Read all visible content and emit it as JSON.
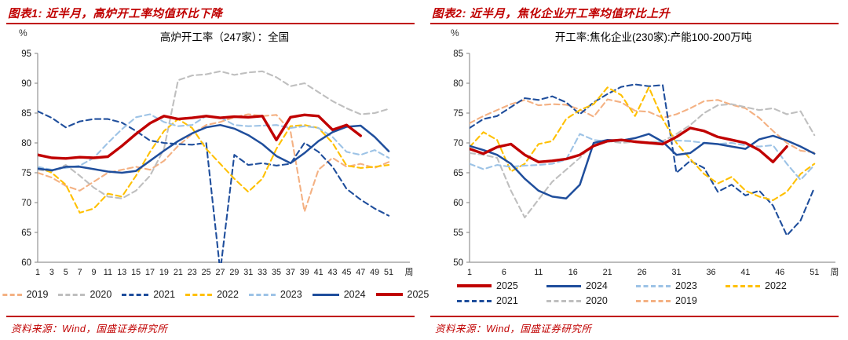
{
  "accent_color": "#C00000",
  "source_text": "资料来源：Wind，国盛证券研究所",
  "week_label": "周",
  "percent_label": "%",
  "panels": [
    {
      "header": "图表1:  近半月，高炉开工率均值环比下降"
    },
    {
      "header": "图表2:  近半月，焦化企业开工率均值环比上升"
    }
  ],
  "chart_data": [
    {
      "type": "line",
      "title": "高炉开工率（247家）：全国",
      "ylabel": "%",
      "xlabel": "周",
      "ylim": [
        60,
        95
      ],
      "y_ticks": [
        60,
        65,
        70,
        75,
        80,
        85,
        90,
        95
      ],
      "x_ticks": [
        1,
        3,
        5,
        7,
        9,
        11,
        13,
        15,
        17,
        19,
        21,
        23,
        25,
        27,
        29,
        31,
        33,
        35,
        37,
        39,
        41,
        43,
        45,
        47,
        49,
        51
      ],
      "x_weeks": [
        1,
        3,
        5,
        7,
        9,
        11,
        13,
        15,
        17,
        19,
        21,
        23,
        25,
        27,
        29,
        31,
        33,
        35,
        37,
        39,
        41,
        43,
        45,
        47,
        49,
        51
      ],
      "legend_order": [
        "2019",
        "2020",
        "2021",
        "2022",
        "2023",
        "2024",
        "2025"
      ],
      "series": [
        {
          "name": "2019",
          "color": "#F4B183",
          "style": "dashed",
          "weight": "thin",
          "values": [
            75,
            74.2,
            72.8,
            72,
            73.5,
            75,
            75.5,
            76,
            75.5,
            77,
            79.5,
            81.5,
            83,
            83.5,
            84.3,
            84.8,
            84.5,
            84.7,
            82,
            68.5,
            75.5,
            77.5,
            76,
            76.5,
            75.8,
            76.8
          ]
        },
        {
          "name": "2020",
          "color": "#BFBFBF",
          "style": "dashed",
          "weight": "thin",
          "values": [
            75.5,
            75.2,
            76.3,
            74.5,
            72.5,
            71,
            70.7,
            72,
            74.5,
            79,
            90.5,
            91.3,
            91.5,
            92,
            91.4,
            91.8,
            92,
            91,
            89.5,
            90,
            88.5,
            87,
            85.8,
            84.8,
            85,
            85.7
          ]
        },
        {
          "name": "2021",
          "color": "#1F4E9C",
          "style": "dashed",
          "weight": "thin",
          "values": [
            85.3,
            84.2,
            82.6,
            83.6,
            84,
            84,
            83.4,
            82,
            80.4,
            80,
            79.8,
            79.7,
            80,
            58.5,
            78,
            76.3,
            76.6,
            76.2,
            76.5,
            80,
            78.5,
            76,
            72.3,
            70.5,
            69,
            67.8
          ]
        },
        {
          "name": "2022",
          "color": "#FFC000",
          "style": "dashed",
          "weight": "thin",
          "values": [
            76,
            75,
            73,
            68.3,
            69,
            71.5,
            71,
            74.5,
            78.5,
            82,
            84,
            82.5,
            79,
            76.5,
            74,
            71.8,
            74,
            79,
            82.8,
            83,
            82.5,
            80,
            76.2,
            75.8,
            76,
            76.3
          ]
        },
        {
          "name": "2023",
          "color": "#9DC3E6",
          "style": "dashed",
          "weight": "thin",
          "values": [
            76,
            75.5,
            75.8,
            76.2,
            77.5,
            80,
            82.3,
            84.3,
            84.8,
            83.5,
            82.8,
            83,
            84.5,
            84.3,
            83,
            82.8,
            82.9,
            83,
            82.5,
            82.8,
            82.5,
            81,
            78.5,
            78,
            78.8,
            77.5
          ]
        },
        {
          "name": "2024",
          "color": "#1F4E9C",
          "style": "solid",
          "weight": "medium",
          "values": [
            75.7,
            75.4,
            76,
            76,
            75.6,
            75.2,
            75,
            75.3,
            77,
            78.7,
            80.3,
            81.6,
            82.6,
            83,
            82.4,
            81.3,
            79.8,
            77.8,
            76.6,
            78.3,
            80.3,
            81.8,
            82.7,
            82.9,
            81,
            78.6
          ]
        },
        {
          "name": "2025",
          "color": "#C00000",
          "style": "solid",
          "weight": "thick",
          "values": [
            78,
            77.5,
            77.4,
            77.6,
            77.5,
            77.7,
            79.5,
            81.5,
            83.3,
            84.5,
            84,
            84.2,
            84.5,
            84.2,
            84.4,
            84.3,
            84.5,
            80.5,
            84.3,
            84.7,
            84.5,
            82.2,
            83,
            81.2,
            null,
            null
          ]
        }
      ]
    },
    {
      "type": "line",
      "title": "开工率:焦化企业(230家):产能100-200万吨",
      "ylabel": "%",
      "xlabel": "周",
      "ylim": [
        50,
        85
      ],
      "y_ticks": [
        50,
        55,
        60,
        65,
        70,
        75,
        80,
        85
      ],
      "x_ticks": [
        1,
        6,
        11,
        16,
        21,
        26,
        31,
        36,
        41,
        46,
        51
      ],
      "x_weeks": [
        1,
        3,
        5,
        7,
        9,
        11,
        13,
        15,
        17,
        19,
        21,
        23,
        25,
        27,
        29,
        31,
        33,
        35,
        37,
        39,
        41,
        43,
        45,
        47,
        49,
        51
      ],
      "legend_order": [
        "2025",
        "2024",
        "2023",
        "2022",
        "2021",
        "2020",
        "2019"
      ],
      "series": [
        {
          "name": "2019",
          "color": "#F4B183",
          "style": "dashed",
          "weight": "thin",
          "values": [
            73.3,
            74.5,
            75.5,
            76.5,
            77.2,
            76.3,
            76.5,
            76.4,
            75.6,
            74.4,
            77.3,
            76.8,
            75.4,
            75.2,
            74.2,
            74.8,
            75.8,
            77,
            77.2,
            76.4,
            75.8,
            74.2,
            72,
            70,
            68.7,
            68.4
          ]
        },
        {
          "name": "2020",
          "color": "#BFBFBF",
          "style": "dashed",
          "weight": "thin",
          "values": [
            68.3,
            68,
            67.5,
            62,
            57.5,
            60.5,
            63.5,
            65.5,
            67.5,
            69.8,
            70.3,
            70,
            70.2,
            70.1,
            70.3,
            71.5,
            73,
            75,
            76.3,
            76.5,
            76,
            75.5,
            75.8,
            74.8,
            75.3,
            71.3
          ]
        },
        {
          "name": "2021",
          "color": "#1F4E9C",
          "style": "dashed",
          "weight": "thin",
          "values": [
            72.5,
            74,
            74.5,
            76,
            77.5,
            77.2,
            77.8,
            76.8,
            74.8,
            76.8,
            78.2,
            79.4,
            79.8,
            79.5,
            79.7,
            65,
            67,
            65.8,
            61.8,
            63,
            61.2,
            62,
            59.5,
            54.5,
            57,
            62.5
          ]
        },
        {
          "name": "2022",
          "color": "#FFC000",
          "style": "dashed",
          "weight": "thin",
          "values": [
            69.3,
            71.8,
            70.5,
            65.2,
            66.5,
            69.8,
            70.3,
            74,
            75.5,
            76.5,
            79.3,
            78,
            74.5,
            79.3,
            74,
            70,
            67.3,
            64.8,
            63.2,
            64.3,
            62,
            61,
            60.4,
            61.8,
            64.8,
            66.5
          ]
        },
        {
          "name": "2023",
          "color": "#9DC3E6",
          "style": "dashed",
          "weight": "thin",
          "values": [
            66.5,
            65.6,
            66.3,
            66,
            66.2,
            66.3,
            66.5,
            67.2,
            71.5,
            70.5,
            70.2,
            70.4,
            70.3,
            70,
            70.2,
            70.4,
            70.3,
            70,
            69.8,
            70,
            69.6,
            69.4,
            69.6,
            66.5,
            63.8,
            66.3
          ]
        },
        {
          "name": "2024",
          "color": "#1F4E9C",
          "style": "solid",
          "weight": "medium",
          "values": [
            69.5,
            68.8,
            68,
            66.5,
            64,
            62,
            61,
            60.7,
            63,
            70,
            70.5,
            70.4,
            70.8,
            71.5,
            70.2,
            68,
            68.3,
            70,
            69.8,
            69.4,
            69,
            70.6,
            71.2,
            70.4,
            69.4,
            68.2
          ]
        },
        {
          "name": "2025",
          "color": "#C00000",
          "style": "solid",
          "weight": "thick",
          "values": [
            69,
            68.2,
            69.3,
            69.8,
            68,
            66.8,
            67,
            67.3,
            68,
            69.5,
            70.3,
            70.5,
            70.2,
            70,
            69.8,
            71,
            72.5,
            72,
            71,
            70.5,
            70,
            68.8,
            66.8,
            69.4,
            null,
            null
          ]
        }
      ]
    }
  ]
}
